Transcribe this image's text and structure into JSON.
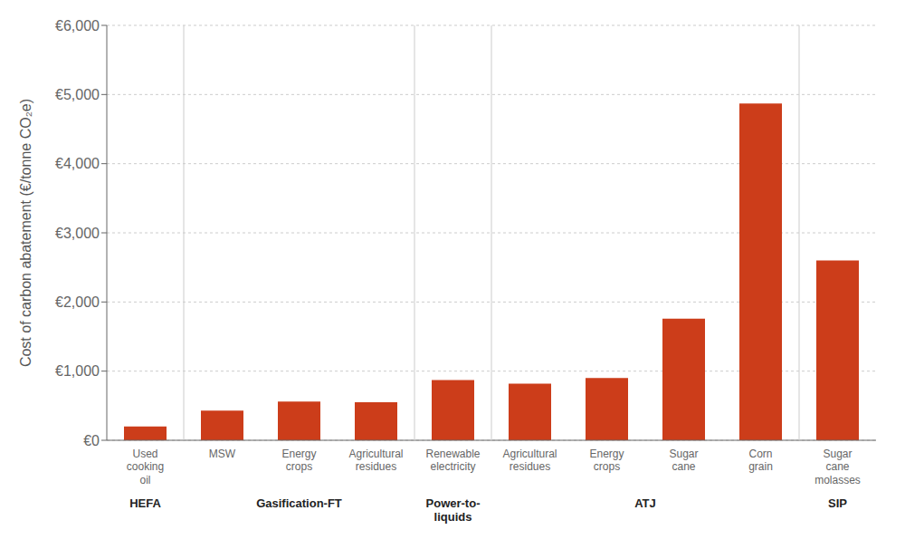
{
  "chart_data": {
    "type": "bar",
    "categories": [
      "Used\ncooking\noil",
      "MSW",
      "Energy\ncrops",
      "Agricultural\nresidues",
      "Renewable\nelectricity",
      "Agricultural\nresidues",
      "Energy\ncrops",
      "Sugar\ncane",
      "Corn\ngrain",
      "Sugar\ncane\nmolasses"
    ],
    "values": [
      200,
      430,
      560,
      550,
      870,
      820,
      900,
      1760,
      4870,
      2600
    ],
    "groups": [
      "HEFA",
      "Gasification-FT",
      "Gasification-FT",
      "Gasification-FT",
      "Power-to-\nliquids",
      "ATJ",
      "ATJ",
      "ATJ",
      "ATJ",
      "SIP"
    ],
    "color": "#CC3D1A",
    "ylabel": "Cost of carbon abatement (€/tonne CO₂e)",
    "ylim": [
      0,
      6000
    ],
    "yticks": [
      {
        "value": 0,
        "label": "€0"
      },
      {
        "value": 1000,
        "label": "€1,000"
      },
      {
        "value": 2000,
        "label": "€2,000"
      },
      {
        "value": 3000,
        "label": "€3,000"
      },
      {
        "value": 4000,
        "label": "€4,000"
      },
      {
        "value": 5000,
        "label": "€5,000"
      },
      {
        "value": 6000,
        "label": "€6,000"
      }
    ],
    "grid": true
  }
}
